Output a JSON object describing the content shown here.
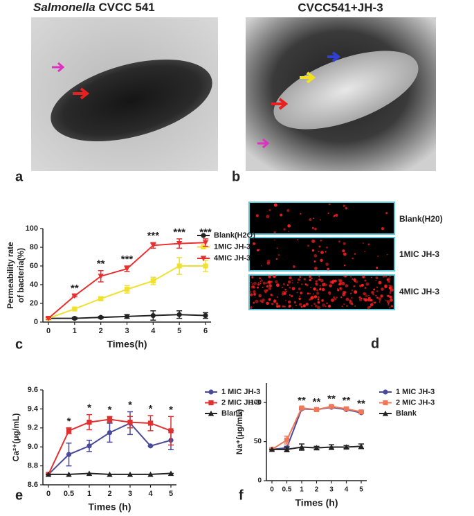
{
  "images": [
    {
      "label": "a",
      "title_italic": "Salmonella",
      "title": "CVCC 541"
    },
    {
      "label": "b",
      "title": "CVCC541+JH-3"
    }
  ],
  "panel_d": {
    "label": "d",
    "rows": [
      "Blank(H20)",
      "1MIC JH-3",
      "4MIC JH-3"
    ]
  },
  "chart_data": [
    {
      "type": "line",
      "label": "c",
      "xlabel": "Times(h)",
      "ylabel_lines": [
        "Permeability rate",
        "of bacteria(%)"
      ],
      "categories": [
        "0",
        "1",
        "2",
        "3",
        "4",
        "5",
        "6"
      ],
      "ylim": [
        0,
        100
      ],
      "yticks": [
        0,
        20,
        40,
        60,
        80,
        100
      ],
      "legend": "right",
      "grid": false,
      "series": [
        {
          "name": "Blank(H2O)",
          "color": "#222222",
          "marker": "circle",
          "values": [
            4,
            4,
            5,
            6,
            7,
            8,
            7
          ],
          "errors": [
            1,
            1,
            1,
            2,
            5,
            4,
            3
          ]
        },
        {
          "name": "1MIC JH-3",
          "color": "#f0e030",
          "marker": "square",
          "values": [
            4,
            14,
            25,
            35,
            44,
            60,
            60
          ],
          "errors": [
            1,
            1,
            2,
            4,
            4,
            9,
            6
          ]
        },
        {
          "name": "4MIC JH-3",
          "color": "#e83030",
          "marker": "triangle-down",
          "values": [
            4,
            28,
            49,
            57,
            82,
            84,
            85
          ],
          "errors": [
            1,
            1,
            6,
            3,
            3,
            5,
            4
          ]
        }
      ],
      "annotations": [
        {
          "text": "**",
          "category": "1"
        },
        {
          "text": "**",
          "category": "2"
        },
        {
          "text": "***",
          "category": "3"
        },
        {
          "text": "***",
          "category": "4"
        },
        {
          "text": "***",
          "category": "5"
        },
        {
          "text": "***",
          "category": "6"
        }
      ]
    },
    {
      "type": "line",
      "label": "e",
      "xlabel": "Times (h)",
      "ylabel_lines": [
        "Ca²⁺(μg/mL)"
      ],
      "categories": [
        "0",
        "0.5",
        "1",
        "2",
        "3",
        "4",
        "5"
      ],
      "ylim": [
        8.6,
        9.6
      ],
      "yticks": [
        8.6,
        8.8,
        {
          "value": 9,
          "label": "9.0"
        },
        9.2,
        9.4,
        9.6
      ],
      "legend": "right",
      "grid": false,
      "series": [
        {
          "name": "1 MIC JH-3",
          "color": "#4a4a9a",
          "marker": "circle",
          "values": [
            8.71,
            8.92,
            9.01,
            9.15,
            9.25,
            9.01,
            9.07
          ],
          "errors": [
            0,
            0.12,
            0.06,
            0.1,
            0.12,
            0,
            0.1
          ]
        },
        {
          "name": "2 MIC JH-3",
          "color": "#e03030",
          "marker": "square",
          "values": [
            8.71,
            9.17,
            9.26,
            9.29,
            9.26,
            9.25,
            9.17
          ],
          "errors": [
            0,
            0.03,
            0.08,
            0.03,
            0.06,
            0.08,
            0.15
          ]
        },
        {
          "name": "Blank",
          "color": "#222222",
          "marker": "triangle",
          "values": [
            8.71,
            8.71,
            8.72,
            8.71,
            8.71,
            8.71,
            8.72
          ],
          "errors": [
            0,
            0,
            0,
            0,
            0,
            0,
            0
          ]
        }
      ],
      "annotations": [
        {
          "text": "*",
          "category": "0.5"
        },
        {
          "text": "*",
          "category": "1"
        },
        {
          "text": "*",
          "category": "2"
        },
        {
          "text": "*",
          "category": "3"
        },
        {
          "text": "*",
          "category": "4"
        },
        {
          "text": "*",
          "category": "5"
        }
      ]
    },
    {
      "type": "line",
      "label": "f",
      "xlabel": "Times (h)",
      "ylabel_lines": [
        "Na⁺(μg/mL)"
      ],
      "categories": [
        "0",
        "0.5",
        "1",
        "2",
        "3",
        "4",
        "5"
      ],
      "ylim": [
        0,
        125
      ],
      "yticks": [
        0,
        50,
        100
      ],
      "legend": "right",
      "grid": false,
      "series": [
        {
          "name": "1 MIC JH-3",
          "color": "#4a4a9a",
          "marker": "circle",
          "values": [
            40,
            42,
            92,
            91,
            94,
            91,
            87
          ],
          "errors": [
            1,
            2,
            1,
            1,
            1,
            1,
            1
          ]
        },
        {
          "name": "2 MIC JH-3",
          "color": "#f07858",
          "marker": "square",
          "values": [
            40,
            52,
            93,
            91,
            95,
            92,
            88
          ],
          "errors": [
            1,
            5,
            1,
            1,
            1,
            2,
            2
          ]
        },
        {
          "name": "Blank",
          "color": "#222222",
          "marker": "triangle",
          "values": [
            40,
            40,
            43,
            42,
            43,
            43,
            44
          ],
          "errors": [
            0,
            3,
            4,
            2,
            3,
            2,
            3
          ]
        }
      ],
      "annotations": [
        {
          "text": "**",
          "category": "1"
        },
        {
          "text": "**",
          "category": "2"
        },
        {
          "text": "**",
          "category": "3"
        },
        {
          "text": "**",
          "category": "4"
        },
        {
          "text": "**",
          "category": "5"
        }
      ]
    }
  ]
}
